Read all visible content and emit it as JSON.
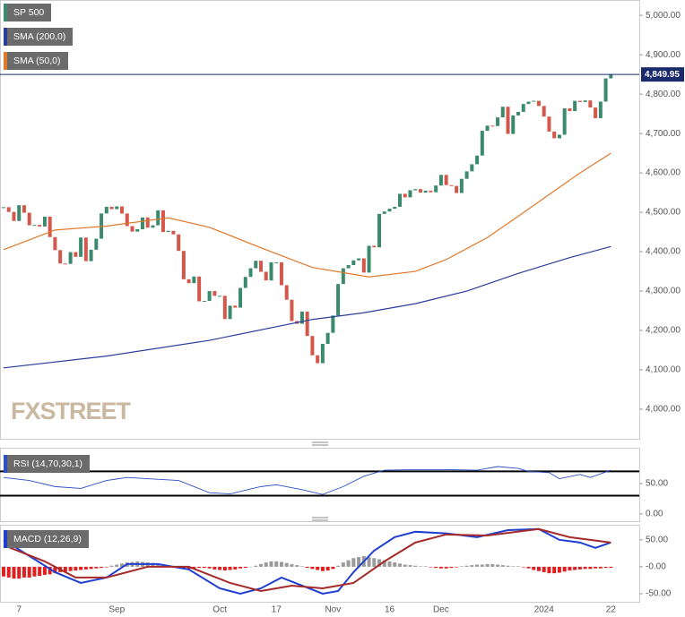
{
  "chart_data": [
    {
      "type": "candlestick",
      "watermark": "FXSTREET",
      "categories": [
        null,
        null,
        null,
        "7",
        null,
        null,
        null,
        null,
        null,
        null,
        null,
        null,
        null,
        null,
        null,
        null,
        null,
        null,
        null,
        null,
        null,
        null,
        "Sep",
        null,
        null,
        null,
        null,
        null,
        null,
        null,
        null,
        null,
        null,
        null,
        null,
        null,
        null,
        null,
        null,
        null,
        null,
        null,
        "Oct",
        null,
        null,
        null,
        null,
        null,
        null,
        null,
        null,
        null,
        null,
        "17",
        null,
        null,
        null,
        null,
        null,
        null,
        null,
        null,
        null,
        null,
        "Nov",
        null,
        null,
        null,
        null,
        null,
        null,
        null,
        null,
        null,
        null,
        "16",
        null,
        null,
        null,
        null,
        null,
        null,
        null,
        null,
        null,
        "Dec",
        null,
        null,
        null,
        null,
        null,
        null,
        null,
        null,
        null,
        null,
        null,
        null,
        null,
        null,
        null,
        null,
        null,
        null,
        null,
        "2024",
        null,
        null,
        null,
        null,
        null,
        null,
        null,
        null,
        null,
        null,
        null,
        null,
        "22"
      ],
      "series": [
        {
          "name": "SP 500",
          "color": "#3b8a6e",
          "down_color": "#d4574b",
          "values": [
            4513,
            4501,
            4478,
            4518,
            4499,
            4467,
            4468,
            4464,
            4489,
            4437,
            4404,
            4370,
            4369,
            4399,
            4387,
            4436,
            4376,
            4405,
            4433,
            4497,
            4514,
            4508,
            4515,
            4497,
            4465,
            4451,
            4457,
            4487,
            4461,
            4467,
            4505,
            4450,
            4453,
            4444,
            4402,
            4330,
            4320,
            4337,
            4274,
            4275,
            4300,
            4288,
            4288,
            4229,
            4263,
            4258,
            4308,
            4336,
            4358,
            4377,
            4349,
            4327,
            4373,
            4373,
            4315,
            4278,
            4224,
            4217,
            4248,
            4186,
            4137,
            4117,
            4166,
            4194,
            4238,
            4318,
            4358,
            4366,
            4378,
            4383,
            4347,
            4415,
            4411,
            4496,
            4502,
            4509,
            4514,
            4547,
            4538,
            4556,
            4559,
            4550,
            4555,
            4551,
            4568,
            4595,
            4569,
            4567,
            4549,
            4585,
            4604,
            4622,
            4644,
            4707,
            4720,
            4719,
            4741,
            4768,
            4699,
            4746,
            4755,
            4775,
            4781,
            4783,
            4770,
            4743,
            4705,
            4688,
            4697,
            4764,
            4757,
            4783,
            4780,
            4784,
            4766,
            4739,
            4781,
            4840,
            4850
          ]
        },
        {
          "name": "SMA (200,0)",
          "color": "#2b3d9b",
          "x": [
            0,
            20,
            40,
            60,
            70,
            80,
            90,
            100,
            110,
            118
          ],
          "values": [
            4105,
            4135,
            4175,
            4228,
            4245,
            4268,
            4300,
            4345,
            4385,
            4413
          ]
        },
        {
          "name": "SMA (50,0)",
          "color": "#e0782a",
          "x": [
            0,
            10,
            20,
            32,
            40,
            50,
            60,
            71,
            80,
            86,
            94,
            100,
            106,
            112,
            118
          ],
          "values": [
            4405,
            4455,
            4465,
            4486,
            4462,
            4410,
            4360,
            4336,
            4350,
            4380,
            4436,
            4490,
            4545,
            4600,
            4650
          ]
        }
      ],
      "last_price": {
        "value": 4849.95,
        "label": "4,849.95"
      },
      "ylim": [
        3925,
        5039
      ],
      "yticks": [
        {
          "value": 5000,
          "label": "5,000.00"
        },
        {
          "value": 4900,
          "label": "4,900.00"
        },
        {
          "value": 4800,
          "label": "4,800.00"
        },
        {
          "value": 4700,
          "label": "4,700.00"
        },
        {
          "value": 4600,
          "label": "4,600.00"
        },
        {
          "value": 4500,
          "label": "4,500.00"
        },
        {
          "value": 4400,
          "label": "4,400.00"
        },
        {
          "value": 4300,
          "label": "4,300.00"
        },
        {
          "value": 4200,
          "label": "4,200.00"
        },
        {
          "value": 4100,
          "label": "4,100.00"
        },
        {
          "value": 4000,
          "label": "4,000.00"
        }
      ]
    },
    {
      "type": "line",
      "title": "RSI (14,70,30,1)",
      "levels": [
        70,
        30
      ],
      "series": [
        {
          "color": "#2b4fc4",
          "x": [
            0,
            5,
            10,
            15,
            20,
            24,
            28,
            34,
            40,
            44,
            50,
            53,
            58,
            62,
            66,
            70,
            74,
            80,
            86,
            92,
            96,
            100,
            102,
            106,
            108,
            112,
            114,
            118
          ],
          "values": [
            60,
            55,
            45,
            42,
            55,
            60,
            58,
            55,
            35,
            33,
            45,
            48,
            40,
            32,
            45,
            62,
            72,
            73,
            73,
            72,
            78,
            75,
            70,
            68,
            58,
            65,
            60,
            72
          ]
        }
      ],
      "ylim": [
        -12,
        109
      ],
      "yticks": [
        {
          "value": 50,
          "label": "50.00"
        },
        {
          "value": 0,
          "label": "0.00"
        }
      ]
    },
    {
      "type": "macd",
      "title": "MACD (12,26,9)",
      "series": [
        {
          "color": "#1f3fd0",
          "x": [
            0,
            5,
            10,
            15,
            20,
            24,
            30,
            36,
            42,
            46,
            50,
            54,
            58,
            62,
            65,
            68,
            72,
            76,
            80,
            86,
            92,
            98,
            104,
            108,
            112,
            115,
            118
          ],
          "values": [
            50,
            20,
            -10,
            -30,
            -20,
            5,
            5,
            -5,
            -40,
            -50,
            -40,
            -20,
            -35,
            -50,
            -45,
            -10,
            30,
            55,
            65,
            62,
            55,
            68,
            70,
            50,
            45,
            35,
            45
          ]
        },
        {
          "color": "#a52a2a",
          "x": [
            0,
            8,
            14,
            20,
            28,
            36,
            44,
            50,
            56,
            62,
            68,
            74,
            80,
            86,
            94,
            104,
            110,
            118
          ],
          "values": [
            40,
            10,
            -20,
            -20,
            0,
            0,
            -30,
            -45,
            -35,
            -40,
            -30,
            10,
            45,
            60,
            58,
            70,
            55,
            45
          ]
        }
      ],
      "histogram": {
        "up_color": "#9a9a9a",
        "down_color": "#e02020",
        "values": [
          -18,
          -20,
          -22,
          -22,
          -20,
          -20,
          -18,
          -17,
          -15,
          -14,
          -12,
          -10,
          -9,
          -8,
          -7,
          -6,
          -5,
          -4,
          -3,
          -2,
          -1,
          2,
          4,
          6,
          8,
          9,
          10,
          9,
          8,
          7,
          6,
          4,
          2,
          -1,
          -2,
          -3,
          -4,
          -3,
          -2,
          -2,
          -3,
          -5,
          -6,
          -7,
          -6,
          -5,
          -3,
          -2,
          0,
          2,
          5,
          8,
          10,
          10,
          9,
          7,
          5,
          3,
          1,
          -2,
          -4,
          -6,
          -8,
          -7,
          -4,
          2,
          8,
          12,
          16,
          18,
          20,
          18,
          16,
          14,
          12,
          10,
          8,
          6,
          4,
          3,
          2,
          1,
          1,
          -1,
          -2,
          -3,
          -3,
          -2,
          -1,
          1,
          2,
          3,
          4,
          4,
          5,
          5,
          4,
          3,
          2,
          1,
          1,
          -1,
          -3,
          -6,
          -8,
          -10,
          -12,
          -12,
          -11,
          -9,
          -7,
          -6,
          -5,
          -4,
          -4,
          -3,
          -3,
          -2,
          -2
        ]
      },
      "ylim": [
        -65,
        78
      ],
      "yticks": [
        {
          "value": 50,
          "label": "50.00"
        },
        {
          "value": 0,
          "label": "-0.00"
        },
        {
          "value": -50,
          "label": "-50.00"
        }
      ]
    }
  ]
}
